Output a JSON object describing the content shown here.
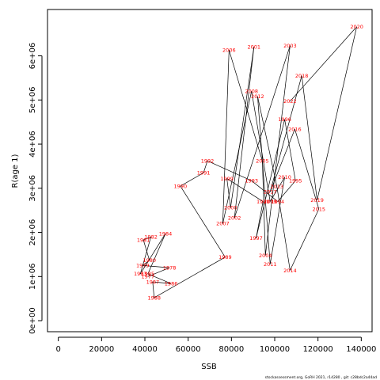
{
  "chart_data": {
    "type": "line",
    "xlabel": "SSB",
    "ylabel": "R(age 1)",
    "xlim": [
      -5000,
      145000
    ],
    "ylim": [
      -250000,
      7050000
    ],
    "x_ticks": [
      0,
      20000,
      40000,
      60000,
      80000,
      100000,
      120000,
      140000
    ],
    "x_tick_labels": [
      "0",
      "20000",
      "40000",
      "60000",
      "80000",
      "100000",
      "120000",
      "140000"
    ],
    "y_ticks": [
      0,
      1000000,
      2000000,
      3000000,
      4000000,
      5000000,
      6000000
    ],
    "y_tick_labels": [
      "0e+00",
      "1e+06",
      "2e+06",
      "3e+06",
      "4e+06",
      "5e+06",
      "6e+06"
    ],
    "label_color": "#ff0000",
    "line_color": "#000000",
    "points": [
      {
        "year": "1977",
        "x": 41400,
        "y": 1000000
      },
      {
        "year": "1978",
        "x": 51400,
        "y": 1200000
      },
      {
        "year": "1979",
        "x": 39000,
        "y": 1250000
      },
      {
        "year": "1980",
        "x": 42100,
        "y": 1370000
      },
      {
        "year": "1981",
        "x": 39300,
        "y": 1830000
      },
      {
        "year": "1982",
        "x": 42800,
        "y": 1900000
      },
      {
        "year": "1983",
        "x": 37900,
        "y": 1060000
      },
      {
        "year": "1984",
        "x": 49500,
        "y": 1970000
      },
      {
        "year": "1985",
        "x": 41400,
        "y": 1060000
      },
      {
        "year": "1986",
        "x": 52100,
        "y": 840000
      },
      {
        "year": "1987",
        "x": 43600,
        "y": 880000
      },
      {
        "year": "1988",
        "x": 44300,
        "y": 520000
      },
      {
        "year": "1989",
        "x": 77100,
        "y": 1440000
      },
      {
        "year": "1990",
        "x": 56400,
        "y": 3050000
      },
      {
        "year": "1991",
        "x": 67100,
        "y": 3350000
      },
      {
        "year": "1992",
        "x": 68900,
        "y": 3620000
      },
      {
        "year": "1993",
        "x": 89300,
        "y": 3170000
      },
      {
        "year": "1994",
        "x": 101400,
        "y": 2700000
      },
      {
        "year": "1995",
        "x": 109600,
        "y": 3170000
      },
      {
        "year": "1996",
        "x": 104600,
        "y": 4560000
      },
      {
        "year": "1997",
        "x": 91400,
        "y": 1870000
      },
      {
        "year": "1998",
        "x": 94600,
        "y": 2700000
      },
      {
        "year": "1999",
        "x": 77900,
        "y": 3220000
      },
      {
        "year": "2000",
        "x": 79600,
        "y": 2560000
      },
      {
        "year": "2001",
        "x": 90400,
        "y": 6200000
      },
      {
        "year": "2002",
        "x": 81400,
        "y": 2330000
      },
      {
        "year": "2003",
        "x": 107100,
        "y": 6230000
      },
      {
        "year": "2004",
        "x": 95700,
        "y": 1480000
      },
      {
        "year": "2005",
        "x": 94300,
        "y": 3620000
      },
      {
        "year": "2006",
        "x": 78900,
        "y": 6130000
      },
      {
        "year": "2007",
        "x": 76000,
        "y": 2200000
      },
      {
        "year": "2008",
        "x": 89300,
        "y": 5200000
      },
      {
        "year": "2009",
        "x": 97900,
        "y": 2700000
      },
      {
        "year": "2010",
        "x": 104600,
        "y": 3250000
      },
      {
        "year": "2011",
        "x": 97900,
        "y": 1280000
      },
      {
        "year": "2012",
        "x": 92100,
        "y": 5080000
      },
      {
        "year": "2013",
        "x": 101000,
        "y": 3040000
      },
      {
        "year": "2014",
        "x": 107100,
        "y": 1140000
      },
      {
        "year": "2015",
        "x": 120400,
        "y": 2530000
      },
      {
        "year": "2016",
        "x": 109300,
        "y": 4340000
      },
      {
        "year": "2017",
        "x": 97900,
        "y": 2920000
      },
      {
        "year": "2018",
        "x": 112500,
        "y": 5550000
      },
      {
        "year": "2019",
        "x": 119600,
        "y": 2730000
      },
      {
        "year": "2020",
        "x": 137900,
        "y": 6660000
      },
      {
        "year": "2022",
        "x": 107100,
        "y": 4970000
      }
    ]
  },
  "footer": {
    "credit": "stockassessment.org, GoRH 2021, r14280 , git: c28bdc2a44ad"
  }
}
